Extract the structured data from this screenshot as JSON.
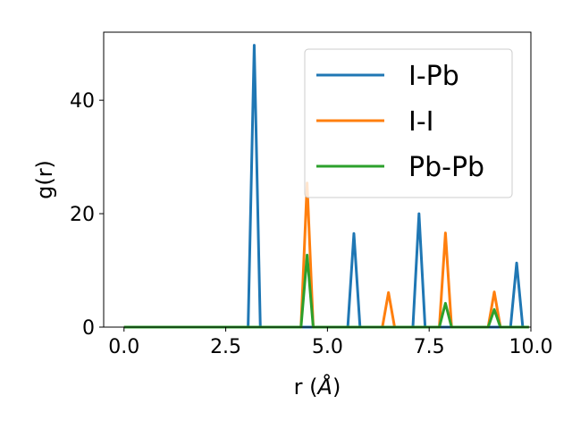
{
  "chart_data": {
    "type": "line",
    "xlabel_prefix": "r (",
    "xlabel_symbol": "Å",
    "xlabel_suffix": ")",
    "ylabel": "g(r)",
    "xlim": [
      -0.5,
      10.0
    ],
    "ylim": [
      0,
      52
    ],
    "x_ticks": [
      0.0,
      2.5,
      5.0,
      7.5,
      10.0
    ],
    "x_tick_labels": [
      "0.0",
      "2.5",
      "5.0",
      "7.5",
      "10.0"
    ],
    "y_ticks": [
      0,
      20,
      40
    ],
    "y_tick_labels": [
      "0",
      "20",
      "40"
    ],
    "grid": false,
    "legend_position": "top-right",
    "series": [
      {
        "name": "I-Pb",
        "color": "#1f77b4",
        "x": [
          0.0,
          3.05,
          3.2,
          3.35,
          5.5,
          5.65,
          5.8,
          7.1,
          7.25,
          7.4,
          9.5,
          9.65,
          9.8,
          9.95
        ],
        "y": [
          0,
          0,
          49.7,
          0,
          0,
          16.5,
          0,
          0,
          20.0,
          0,
          0,
          11.3,
          0,
          0
        ]
      },
      {
        "name": "I-I",
        "color": "#ff7f0e",
        "x": [
          0.0,
          4.35,
          4.5,
          4.65,
          6.35,
          6.5,
          6.65,
          7.75,
          7.9,
          8.05,
          8.95,
          9.1,
          9.25,
          9.95
        ],
        "y": [
          0,
          0,
          25.4,
          0,
          0,
          6.1,
          0,
          0,
          16.6,
          0,
          0,
          6.2,
          0,
          0
        ]
      },
      {
        "name": "Pb-Pb",
        "color": "#2ca02c",
        "x": [
          0.0,
          4.35,
          4.5,
          4.65,
          7.75,
          7.9,
          8.05,
          8.95,
          9.1,
          9.25,
          9.95
        ],
        "y": [
          0,
          0,
          12.7,
          0,
          0,
          4.2,
          0,
          0,
          3.1,
          0,
          0
        ]
      }
    ]
  }
}
